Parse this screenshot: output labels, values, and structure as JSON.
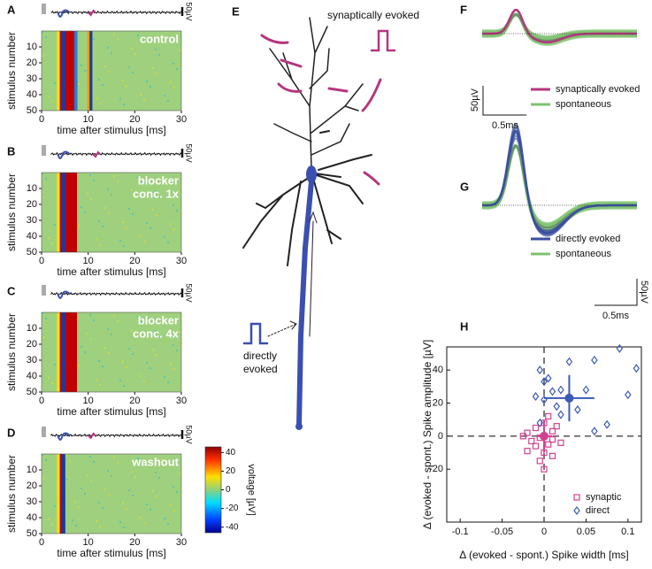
{
  "panel_labels": [
    "A",
    "B",
    "C",
    "D",
    "E",
    "F",
    "G",
    "H"
  ],
  "raster": {
    "y_label": "stimulus number",
    "x_label": "time after stimulus [ms]",
    "xlim": [
      0,
      30
    ],
    "xticks": [
      0,
      10,
      20,
      30
    ],
    "ylim": [
      0,
      50
    ],
    "yticks": [
      10,
      20,
      30,
      40,
      50
    ],
    "scale_label": "50µV",
    "conditions": [
      [
        "control"
      ],
      [
        "blocker",
        "conc. 1x"
      ],
      [
        "blocker",
        "conc. 4x"
      ],
      [
        "washout"
      ]
    ]
  },
  "colorbar": {
    "label": "voltage [µV]",
    "lim": [
      -46,
      46
    ],
    "ticks": [
      40,
      20,
      0,
      -20,
      -40
    ]
  },
  "neuron": {
    "synaptic_label": "synaptically evoked",
    "direct_label": [
      "directly",
      "evoked"
    ]
  },
  "waveforms_f": {
    "legend": [
      "synaptically evoked",
      "spontaneous"
    ],
    "colors": [
      "#b5367e",
      "#7dc36f"
    ],
    "scale_y": "50µV",
    "scale_x": "0.5ms"
  },
  "waveforms_g": {
    "legend": [
      "directly evoked",
      "spontaneous"
    ],
    "colors": [
      "#3a4fa0",
      "#7dc36f"
    ],
    "scale_y": "50µV",
    "scale_x": "0.5ms"
  },
  "chart_data": {
    "type": "scatter",
    "xlabel": "Δ (evoked - spont.) Spike width [ms]",
    "ylabel": "Δ (evoked - spont.) Spike amplitude [µV]",
    "xlim": [
      -0.116,
      0.116
    ],
    "xticks": [
      -0.1,
      -0.05,
      0,
      0.05,
      0.1
    ],
    "ylim": [
      -52,
      54
    ],
    "yticks": [
      -20,
      0,
      20,
      40
    ],
    "legend_position": "lower right",
    "series": [
      {
        "name": "synaptic",
        "color": "#d0428f",
        "marker": "square",
        "x": [
          -0.01,
          0.0,
          -0.02,
          -0.015,
          -0.01,
          0.005,
          0.01,
          0.0,
          -0.005,
          0.0,
          0.01,
          -0.02,
          0.015,
          0.02,
          -0.025,
          0.005,
          0.01,
          -0.005
        ],
        "values": [
          5,
          8,
          2,
          -3,
          -6,
          -5,
          -2,
          -10,
          -15,
          -20,
          -12,
          -9,
          6,
          -4,
          0,
          12,
          3,
          -1
        ],
        "mean_x": 0,
        "mean": 0,
        "x_err": 0.01,
        "err": 10
      },
      {
        "name": "direct",
        "color": "#3b5ab5",
        "marker": "diamond",
        "x": [
          0.09,
          0.11,
          0.06,
          0.03,
          -0.005,
          0.0,
          0.005,
          0.02,
          0.01,
          -0.01,
          0.0,
          0.05,
          0.1,
          0.04,
          0.075,
          0.06,
          0.02,
          0.015,
          -0.005
        ],
        "values": [
          53,
          41,
          46,
          45,
          40,
          33,
          35,
          28,
          27,
          24,
          22,
          28,
          25,
          16,
          7,
          3,
          13,
          18,
          8
        ],
        "mean_x": 0.03,
        "mean": 23,
        "x_err": 0.03,
        "err": 14
      }
    ]
  }
}
